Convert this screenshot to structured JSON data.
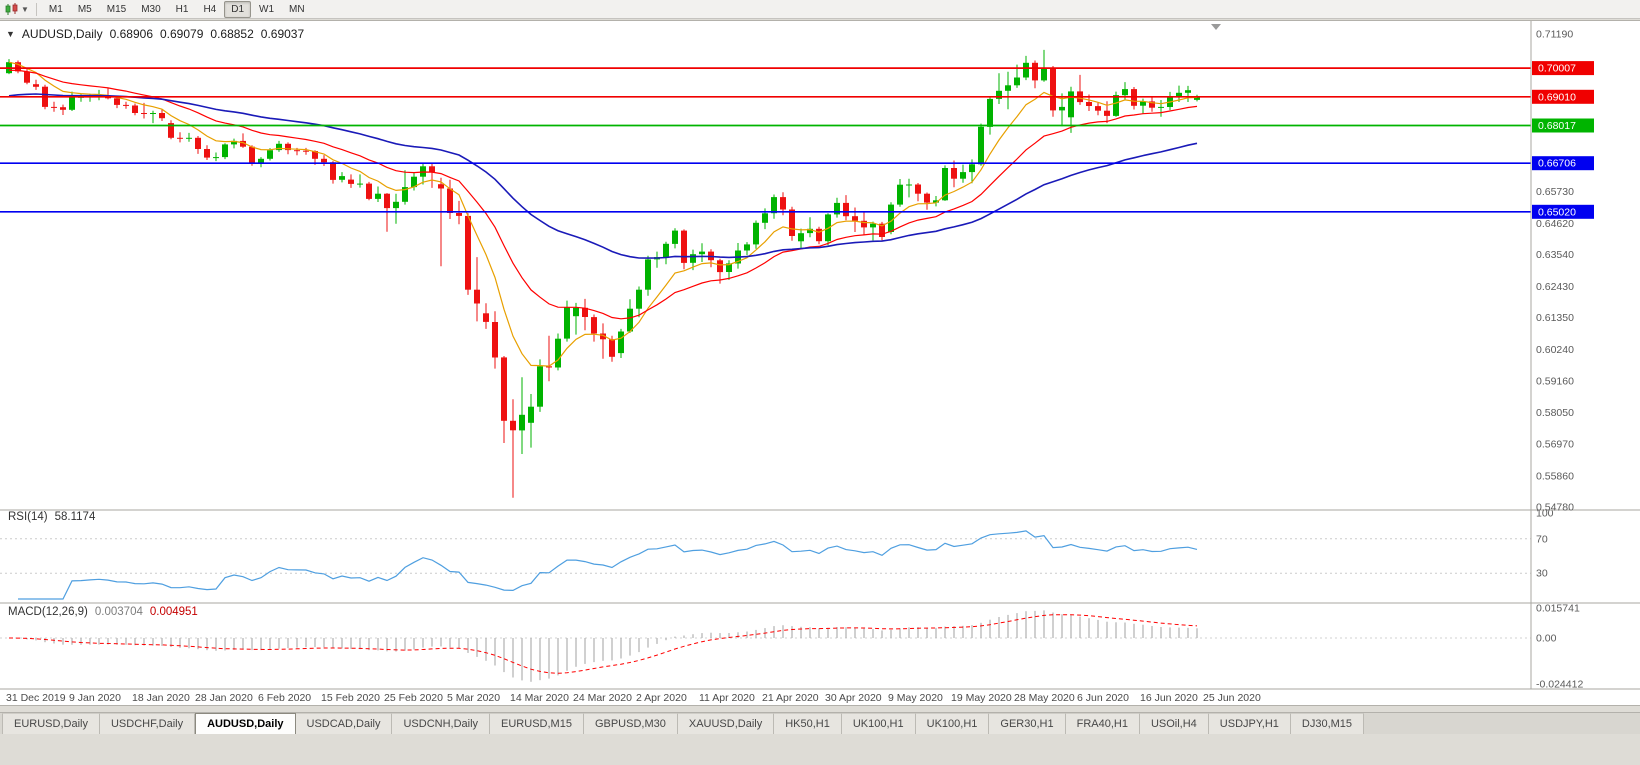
{
  "toolbar": {
    "chart_icon": "candlestick-chart-icon",
    "timeframes": [
      {
        "label": "M1",
        "active": false
      },
      {
        "label": "M5",
        "active": false
      },
      {
        "label": "M15",
        "active": false
      },
      {
        "label": "M30",
        "active": false
      },
      {
        "label": "H1",
        "active": false
      },
      {
        "label": "H4",
        "active": false
      },
      {
        "label": "D1",
        "active": true
      },
      {
        "label": "W1",
        "active": false
      },
      {
        "label": "MN",
        "active": false
      }
    ]
  },
  "chart": {
    "symbol_timeframe": "AUDUSD,Daily",
    "ohlc": {
      "open": "0.68906",
      "high": "0.69079",
      "low": "0.68852",
      "close": "0.69037"
    },
    "levels": [
      {
        "price": 0.70007,
        "label": "0.70007",
        "color": "#f00000"
      },
      {
        "price": 0.6901,
        "label": "0.69010",
        "color": "#f00000"
      },
      {
        "price": 0.68017,
        "label": "0.68017",
        "color": "#00b400"
      },
      {
        "price": 0.66706,
        "label": "0.66706",
        "color": "#0000f0"
      },
      {
        "price": 0.6502,
        "label": "0.65020",
        "color": "#0000f0"
      }
    ],
    "axis_labels": [
      "0.71190",
      "0.65730",
      "0.64620",
      "0.63540",
      "0.62430",
      "0.61350",
      "0.60240",
      "0.59160",
      "0.58050",
      "0.56970",
      "0.55860",
      "0.54780"
    ]
  },
  "rsi": {
    "title": "RSI(14)",
    "value": "58.1174",
    "period": 14,
    "color": "#4f9fe0",
    "axis": [
      "100",
      "70",
      "30"
    ]
  },
  "macd": {
    "title": "MACD(12,26,9)",
    "value_macd": "0.003704",
    "value_signal": "0.004951",
    "fast": 12,
    "slow": 26,
    "signal_period": 9,
    "axis": [
      "0.015741",
      "0.00",
      "-0.024412"
    ]
  },
  "time_axis": [
    "31 Dec 2019",
    "9 Jan 2020",
    "18 Jan 2020",
    "28 Jan 2020",
    "6 Feb 2020",
    "15 Feb 2020",
    "25 Feb 2020",
    "5 Mar 2020",
    "14 Mar 2020",
    "24 Mar 2020",
    "2 Apr 2020",
    "11 Apr 2020",
    "21 Apr 2020",
    "30 Apr 2020",
    "9 May 2020",
    "19 May 2020",
    "28 May 2020",
    "6 Jun 2020",
    "16 Jun 2020",
    "25 Jun 2020"
  ],
  "tabs": [
    {
      "label": "EURUSD,Daily",
      "active": false
    },
    {
      "label": "USDCHF,Daily",
      "active": false
    },
    {
      "label": "AUDUSD,Daily",
      "active": true
    },
    {
      "label": "USDCAD,Daily",
      "active": false
    },
    {
      "label": "USDCNH,Daily",
      "active": false
    },
    {
      "label": "EURUSD,M15",
      "active": false
    },
    {
      "label": "GBPUSD,M30",
      "active": false
    },
    {
      "label": "XAUUSD,Daily",
      "active": false
    },
    {
      "label": "HK50,H1",
      "active": false
    },
    {
      "label": "UK100,H1",
      "active": false
    },
    {
      "label": "UK100,H1",
      "active": false
    },
    {
      "label": "GER30,H1",
      "active": false
    },
    {
      "label": "FRA40,H1",
      "active": false
    },
    {
      "label": "USOil,H4",
      "active": false
    },
    {
      "label": "USDJPY,H1",
      "active": false
    },
    {
      "label": "DJ30,M15",
      "active": false
    }
  ],
  "chart_data": {
    "type": "candlestick",
    "symbol": "AUDUSD",
    "timeframe": "Daily",
    "title": "AUDUSD,Daily 0.68906 0.69079 0.68852 0.69037",
    "y_range": [
      0.5478,
      0.7119
    ],
    "x_range": [
      "31 Dec 2019",
      "3 Jul 2020"
    ],
    "colors": {
      "up": "#00b300",
      "down": "#ee1111",
      "macd_hist": "#b0b0b0",
      "macd_signal": "#ff0000"
    },
    "moving_averages": [
      {
        "name": "fast-ma",
        "color": "#e8a000",
        "estimated_period": 8,
        "width": 1.2
      },
      {
        "name": "medium-ma",
        "color": "#ff0000",
        "estimated_period": 20,
        "width": 1.2,
        "seed": 0.699
      },
      {
        "name": "slow-ma",
        "color": "#1a1ab8",
        "estimated_period": 50,
        "width": 1.6,
        "seed": 0.69
      }
    ],
    "candles": [
      [
        0.6983,
        0.7032,
        0.698,
        0.7021
      ],
      [
        0.7021,
        0.7027,
        0.6983,
        0.6989
      ],
      [
        0.6989,
        0.7002,
        0.6945,
        0.695
      ],
      [
        0.6945,
        0.696,
        0.6925,
        0.6936
      ],
      [
        0.6936,
        0.6943,
        0.6858,
        0.6866
      ],
      [
        0.6866,
        0.6884,
        0.6849,
        0.6865
      ],
      [
        0.6865,
        0.6874,
        0.6838,
        0.6856
      ],
      [
        0.6856,
        0.6919,
        0.6852,
        0.69
      ],
      [
        0.69,
        0.691,
        0.6884,
        0.6901
      ],
      [
        0.6901,
        0.6912,
        0.6884,
        0.6903
      ],
      [
        0.6903,
        0.6925,
        0.6889,
        0.6905
      ],
      [
        0.6905,
        0.6933,
        0.6892,
        0.6896
      ],
      [
        0.6896,
        0.6905,
        0.6862,
        0.6873
      ],
      [
        0.6873,
        0.6884,
        0.686,
        0.6871
      ],
      [
        0.6871,
        0.6878,
        0.6837,
        0.6845
      ],
      [
        0.6845,
        0.688,
        0.6826,
        0.6842
      ],
      [
        0.6842,
        0.6853,
        0.681,
        0.6845
      ],
      [
        0.6845,
        0.6857,
        0.6817,
        0.6827
      ],
      [
        0.681,
        0.682,
        0.6754,
        0.6759
      ],
      [
        0.6759,
        0.6778,
        0.6743,
        0.6756
      ],
      [
        0.6756,
        0.6776,
        0.6745,
        0.6759
      ],
      [
        0.6759,
        0.6765,
        0.6703,
        0.672
      ],
      [
        0.672,
        0.6733,
        0.6682,
        0.669
      ],
      [
        0.669,
        0.6708,
        0.6678,
        0.6692
      ],
      [
        0.6692,
        0.674,
        0.6685,
        0.6736
      ],
      [
        0.6736,
        0.6756,
        0.6722,
        0.6748
      ],
      [
        0.6748,
        0.6774,
        0.6724,
        0.6728
      ],
      [
        0.6728,
        0.6733,
        0.6662,
        0.6673
      ],
      [
        0.6673,
        0.6692,
        0.6657,
        0.6686
      ],
      [
        0.6686,
        0.6723,
        0.668,
        0.6716
      ],
      [
        0.6716,
        0.6748,
        0.671,
        0.6738
      ],
      [
        0.6738,
        0.6743,
        0.6702,
        0.6716
      ],
      [
        0.6716,
        0.6724,
        0.6698,
        0.6714
      ],
      [
        0.6714,
        0.6724,
        0.67,
        0.6713
      ],
      [
        0.6713,
        0.6716,
        0.6665,
        0.6686
      ],
      [
        0.6686,
        0.6699,
        0.6661,
        0.6674
      ],
      [
        0.6674,
        0.6678,
        0.66,
        0.6613
      ],
      [
        0.6613,
        0.664,
        0.6604,
        0.6626
      ],
      [
        0.6614,
        0.6632,
        0.6585,
        0.6599
      ],
      [
        0.6599,
        0.6632,
        0.6586,
        0.66
      ],
      [
        0.66,
        0.6606,
        0.6542,
        0.6547
      ],
      [
        0.6547,
        0.659,
        0.6536,
        0.6565
      ],
      [
        0.6565,
        0.6567,
        0.6433,
        0.6515
      ],
      [
        0.6515,
        0.6565,
        0.6461,
        0.6537
      ],
      [
        0.6537,
        0.6646,
        0.6527,
        0.6588
      ],
      [
        0.6588,
        0.6637,
        0.6576,
        0.6624
      ],
      [
        0.6624,
        0.667,
        0.6597,
        0.666
      ],
      [
        0.666,
        0.6672,
        0.6585,
        0.6639
      ],
      [
        0.6598,
        0.662,
        0.6313,
        0.6583
      ],
      [
        0.6583,
        0.6613,
        0.6477,
        0.6498
      ],
      [
        0.6498,
        0.654,
        0.6459,
        0.6488
      ],
      [
        0.6488,
        0.6497,
        0.6214,
        0.6232
      ],
      [
        0.6232,
        0.6345,
        0.6122,
        0.6184
      ],
      [
        0.615,
        0.6185,
        0.6096,
        0.612
      ],
      [
        0.612,
        0.6157,
        0.5958,
        0.5997
      ],
      [
        0.5997,
        0.6002,
        0.57,
        0.5777
      ],
      [
        0.5777,
        0.5852,
        0.551,
        0.5744
      ],
      [
        0.5744,
        0.5928,
        0.5662,
        0.5798
      ],
      [
        0.577,
        0.587,
        0.5684,
        0.5826
      ],
      [
        0.5826,
        0.599,
        0.5808,
        0.5966
      ],
      [
        0.5966,
        0.6072,
        0.5914,
        0.5962
      ],
      [
        0.5962,
        0.608,
        0.5952,
        0.6062
      ],
      [
        0.6062,
        0.6194,
        0.6052,
        0.617
      ],
      [
        0.614,
        0.6186,
        0.6076,
        0.6169
      ],
      [
        0.6169,
        0.62,
        0.6091,
        0.6137
      ],
      [
        0.6137,
        0.6146,
        0.6052,
        0.608
      ],
      [
        0.608,
        0.6115,
        0.5992,
        0.606
      ],
      [
        0.606,
        0.6072,
        0.5982,
        0.5999
      ],
      [
        0.6012,
        0.6096,
        0.5995,
        0.6087
      ],
      [
        0.6087,
        0.6199,
        0.6082,
        0.6166
      ],
      [
        0.6166,
        0.6243,
        0.6136,
        0.6232
      ],
      [
        0.6232,
        0.635,
        0.6211,
        0.6337
      ],
      [
        0.6337,
        0.6364,
        0.6308,
        0.6345
      ],
      [
        0.6345,
        0.6398,
        0.632,
        0.6391
      ],
      [
        0.6391,
        0.6445,
        0.6375,
        0.6437
      ],
      [
        0.6437,
        0.6441,
        0.6303,
        0.6325
      ],
      [
        0.6325,
        0.6371,
        0.63,
        0.6355
      ],
      [
        0.6355,
        0.6393,
        0.6328,
        0.6364
      ],
      [
        0.6364,
        0.6372,
        0.631,
        0.6334
      ],
      [
        0.6334,
        0.6339,
        0.6253,
        0.6293
      ],
      [
        0.6293,
        0.6334,
        0.6266,
        0.6323
      ],
      [
        0.6323,
        0.6394,
        0.6305,
        0.6368
      ],
      [
        0.6368,
        0.6397,
        0.6352,
        0.6389
      ],
      [
        0.6389,
        0.6472,
        0.6374,
        0.6464
      ],
      [
        0.6464,
        0.6514,
        0.6442,
        0.6497
      ],
      [
        0.6497,
        0.6562,
        0.6478,
        0.6553
      ],
      [
        0.6553,
        0.657,
        0.649,
        0.651
      ],
      [
        0.651,
        0.652,
        0.6402,
        0.6418
      ],
      [
        0.64,
        0.6444,
        0.6372,
        0.6428
      ],
      [
        0.6428,
        0.6483,
        0.6414,
        0.6443
      ],
      [
        0.6443,
        0.645,
        0.639,
        0.64
      ],
      [
        0.64,
        0.6497,
        0.6386,
        0.6493
      ],
      [
        0.6493,
        0.6551,
        0.6482,
        0.6533
      ],
      [
        0.6533,
        0.656,
        0.6473,
        0.6487
      ],
      [
        0.6487,
        0.6517,
        0.6432,
        0.6471
      ],
      [
        0.6471,
        0.6504,
        0.6423,
        0.6448
      ],
      [
        0.6448,
        0.6468,
        0.6403,
        0.6461
      ],
      [
        0.6461,
        0.6467,
        0.6403,
        0.6415
      ],
      [
        0.6432,
        0.6535,
        0.6424,
        0.6527
      ],
      [
        0.6527,
        0.6616,
        0.652,
        0.6596
      ],
      [
        0.6596,
        0.6617,
        0.6552,
        0.6597
      ],
      [
        0.6597,
        0.6602,
        0.6539,
        0.6565
      ],
      [
        0.6565,
        0.6569,
        0.6509,
        0.6534
      ],
      [
        0.6534,
        0.6557,
        0.6521,
        0.6542
      ],
      [
        0.6542,
        0.6663,
        0.654,
        0.6654
      ],
      [
        0.6654,
        0.668,
        0.6587,
        0.6617
      ],
      [
        0.6617,
        0.6666,
        0.6603,
        0.664
      ],
      [
        0.664,
        0.6684,
        0.6601,
        0.6667
      ],
      [
        0.6667,
        0.6808,
        0.6662,
        0.6797
      ],
      [
        0.6797,
        0.6899,
        0.677,
        0.6894
      ],
      [
        0.6894,
        0.6983,
        0.6876,
        0.6922
      ],
      [
        0.6922,
        0.6988,
        0.6858,
        0.6941
      ],
      [
        0.6941,
        0.7013,
        0.6932,
        0.6968
      ],
      [
        0.6968,
        0.7043,
        0.6959,
        0.7019
      ],
      [
        0.7019,
        0.7027,
        0.6931,
        0.6958
      ],
      [
        0.6958,
        0.7064,
        0.6953,
        0.7
      ],
      [
        0.7,
        0.7008,
        0.6832,
        0.6854
      ],
      [
        0.6854,
        0.6913,
        0.6799,
        0.6866
      ],
      [
        0.683,
        0.6936,
        0.6776,
        0.692
      ],
      [
        0.692,
        0.6977,
        0.6873,
        0.6883
      ],
      [
        0.6883,
        0.6909,
        0.6852,
        0.6869
      ],
      [
        0.6869,
        0.6882,
        0.6837,
        0.6853
      ],
      [
        0.6853,
        0.6886,
        0.681,
        0.6835
      ],
      [
        0.6835,
        0.6919,
        0.6832,
        0.6907
      ],
      [
        0.6907,
        0.6952,
        0.689,
        0.6928
      ],
      [
        0.6928,
        0.6935,
        0.6857,
        0.687
      ],
      [
        0.687,
        0.6895,
        0.6842,
        0.6885
      ],
      [
        0.6885,
        0.6901,
        0.6849,
        0.6863
      ],
      [
        0.6863,
        0.689,
        0.6832,
        0.6866
      ],
      [
        0.6866,
        0.6918,
        0.6855,
        0.6903
      ],
      [
        0.6903,
        0.694,
        0.6883,
        0.6915
      ],
      [
        0.6915,
        0.6939,
        0.6883,
        0.6924
      ],
      [
        0.68906,
        0.69079,
        0.68852,
        0.69037
      ]
    ]
  }
}
